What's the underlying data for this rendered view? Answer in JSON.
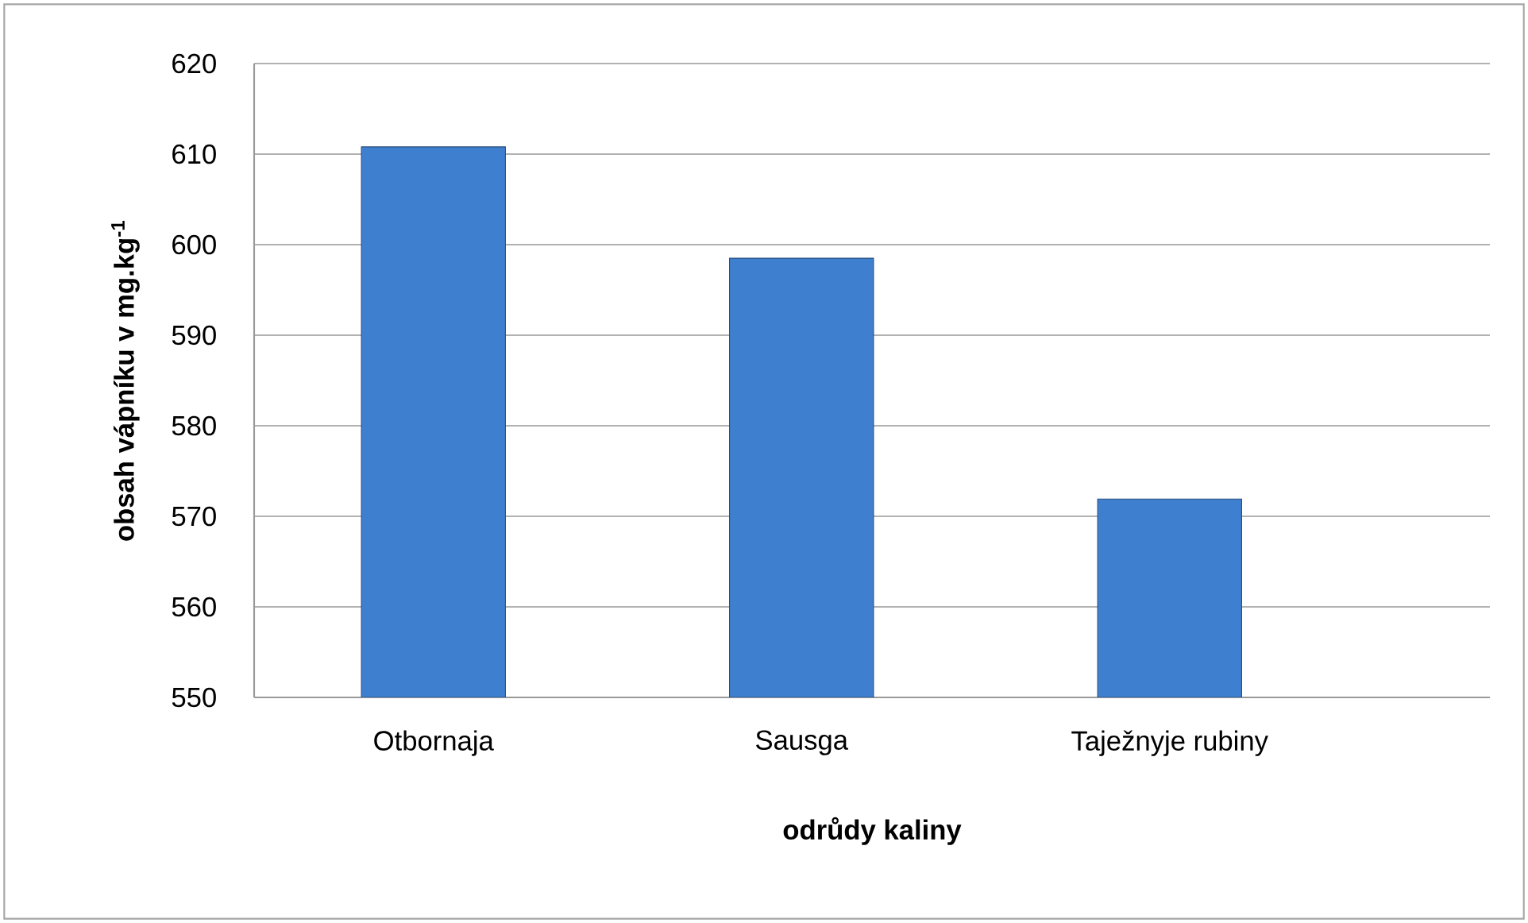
{
  "chart_data": {
    "type": "bar",
    "xlabel": "odrůdy kaliny",
    "ylabel": "obsah vápníku v mg.kg$^{-1}$",
    "categories": [
      "Otbornaja",
      "Sausga",
      "Taježnyje rubiny"
    ],
    "values": [
      610.8,
      598.5,
      571.9
    ],
    "color": "#3f7fcf",
    "ylim": [
      550,
      620
    ],
    "yticks": [
      550,
      560,
      570,
      580,
      590,
      600,
      610,
      620
    ],
    "grid": "y"
  }
}
